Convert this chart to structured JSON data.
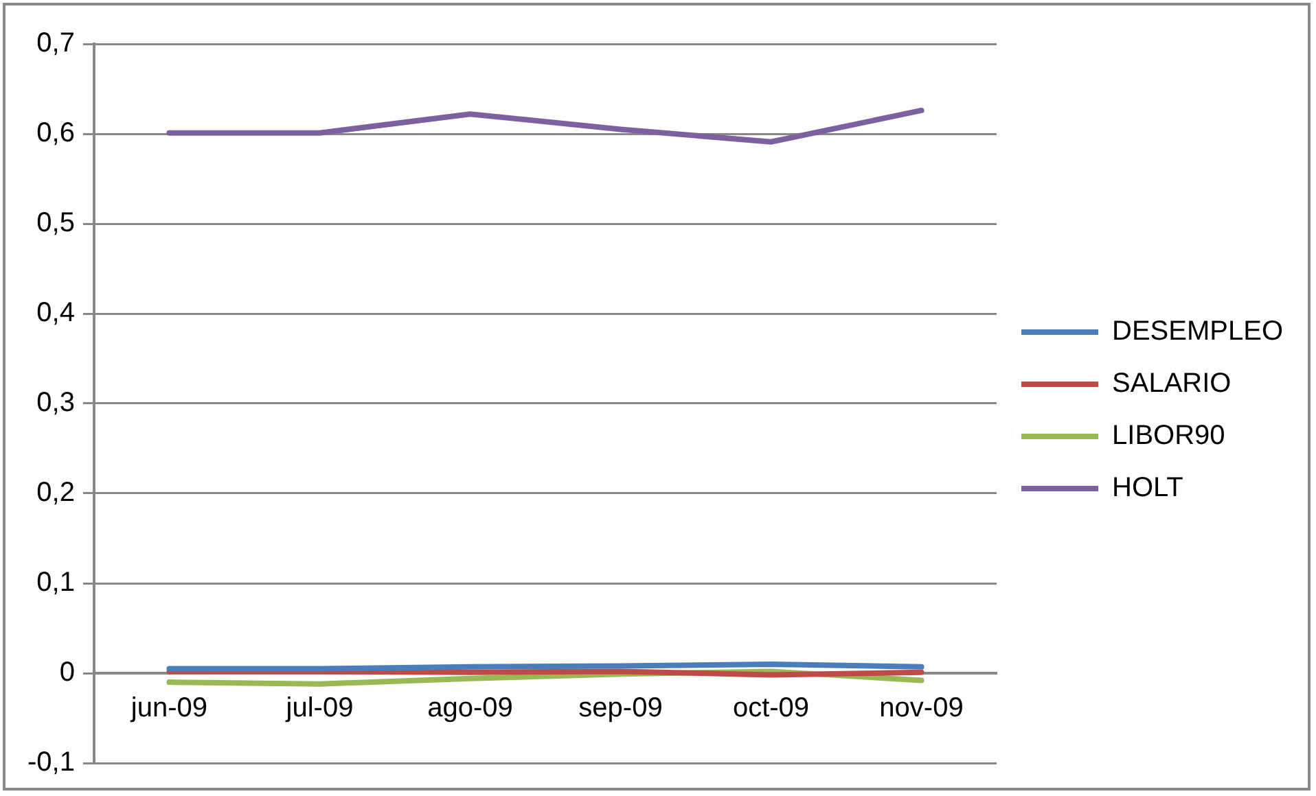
{
  "chart_data": {
    "type": "line",
    "categories": [
      "jun-09",
      "jul-09",
      "ago-09",
      "sep-09",
      "oct-09",
      "nov-09"
    ],
    "series": [
      {
        "name": "DESEMPLEO",
        "color": "#4a7ebb",
        "values": [
          0.005,
          0.005,
          0.007,
          0.008,
          0.01,
          0.007
        ]
      },
      {
        "name": "SALARIO",
        "color": "#be4b48",
        "values": [
          0.002,
          0.002,
          0.001,
          0.002,
          -0.002,
          0.001
        ]
      },
      {
        "name": "LIBOR90",
        "color": "#98b954",
        "values": [
          -0.01,
          -0.012,
          -0.006,
          -0.001,
          0.002,
          -0.008
        ]
      },
      {
        "name": "HOLT",
        "color": "#7d60a0",
        "values": [
          0.601,
          0.601,
          0.622,
          0.605,
          0.591,
          0.626
        ]
      }
    ],
    "ylim": [
      -0.1,
      0.7
    ],
    "yticks": [
      {
        "value": -0.1,
        "label": "-0,1"
      },
      {
        "value": 0,
        "label": "0"
      },
      {
        "value": 0.1,
        "label": "0,1"
      },
      {
        "value": 0.2,
        "label": "0,2"
      },
      {
        "value": 0.3,
        "label": "0,3"
      },
      {
        "value": 0.4,
        "label": "0,4"
      },
      {
        "value": 0.5,
        "label": "0,5"
      },
      {
        "value": 0.6,
        "label": "0,6"
      },
      {
        "value": 0.7,
        "label": "0,7"
      }
    ],
    "grid": "y",
    "legend": "right",
    "marker": "none",
    "line_style": "solid"
  }
}
